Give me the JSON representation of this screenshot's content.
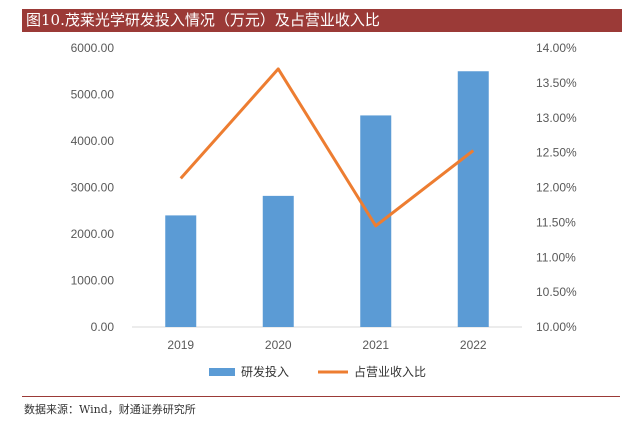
{
  "title": "图10.茂莱光学研发投入情况（万元）及占营业收入比",
  "source": "数据来源：Wind，财通证券研究所",
  "colors": {
    "bar": "#5b9bd5",
    "line": "#ed7d31",
    "title_bg": "#9b3a37"
  },
  "chart_data": {
    "type": "bar",
    "categories": [
      "2019",
      "2020",
      "2021",
      "2022"
    ],
    "series": [
      {
        "name": "研发投入",
        "type": "bar",
        "axis": "left",
        "values": [
          2400,
          2820,
          4550,
          5500
        ]
      },
      {
        "name": "占营业收入比",
        "type": "line",
        "axis": "right",
        "values": [
          12.13,
          13.7,
          11.45,
          12.53
        ]
      }
    ],
    "y_left": {
      "ylim": [
        0,
        6000
      ],
      "ticks": [
        "0.00",
        "1000.00",
        "2000.00",
        "3000.00",
        "4000.00",
        "5000.00",
        "6000.00"
      ]
    },
    "y_right": {
      "ylim": [
        10.0,
        14.0
      ],
      "ticks": [
        "10.00%",
        "10.50%",
        "11.00%",
        "11.50%",
        "12.00%",
        "12.50%",
        "13.00%",
        "13.50%",
        "14.00%"
      ]
    },
    "grid": false,
    "legend": "bottom"
  }
}
